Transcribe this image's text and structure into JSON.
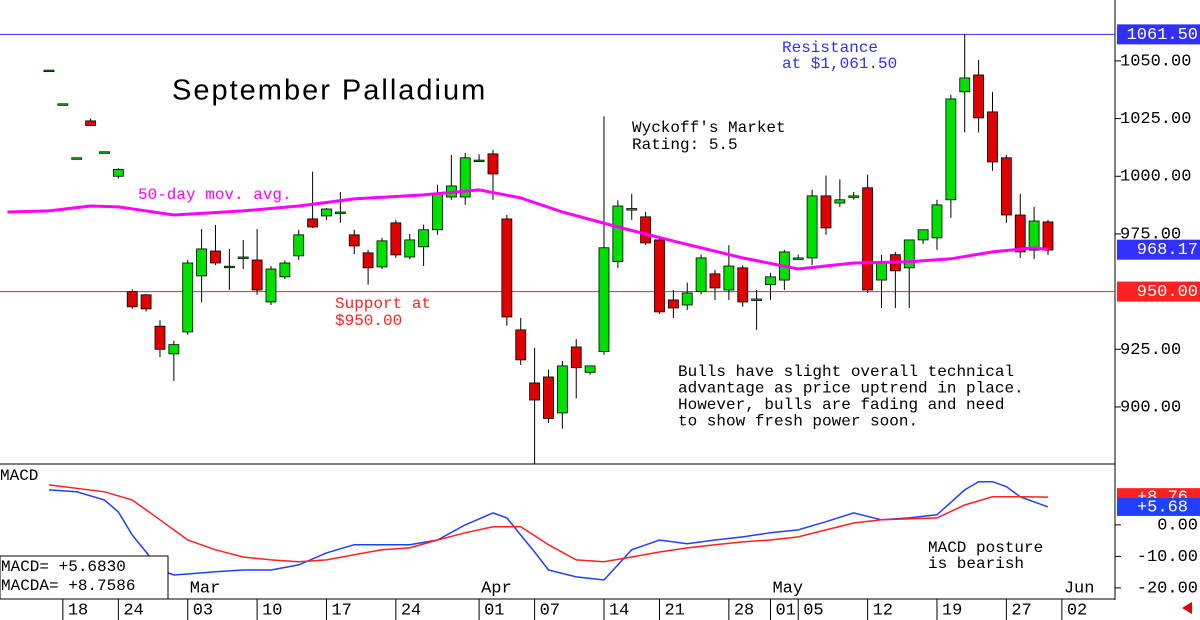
{
  "chart_data": [
    {
      "type": "candlestick",
      "title": "September Palladium",
      "rating": [
        "Wyckoff's Market",
        "Rating: 5.5"
      ],
      "commentary": [
        "Bulls have slight overall technical",
        "advantage as price uptrend in place.",
        "However, bulls are fading and need",
        "to show fresh power soon."
      ],
      "open": [
        1046,
        1031.4,
        1008,
        1024,
        1010.6,
        1000,
        950,
        948.6,
        935,
        923,
        932.5,
        956.8,
        967.6,
        961,
        965,
        963.7,
        945.5,
        956.4,
        965.5,
        981.5,
        982.8,
        984.5,
        974.6,
        966.8,
        960.7,
        979.8,
        965,
        969.4,
        976.8,
        991,
        991,
        1007,
        1009.7,
        981.5,
        933.4,
        910.4,
        913,
        897.4,
        926,
        915,
        924,
        963,
        986,
        982.4,
        972.4,
        946.4,
        944.2,
        950,
        957.7,
        950.7,
        960.3,
        946.8,
        953,
        955,
        964.6,
        964.6,
        991.5,
        988.4,
        991.5,
        995,
        955,
        966,
        960.3,
        972.4,
        973.3,
        989.8,
        1036.6,
        1043.9,
        1027.9,
        1008,
        983.2,
        968,
        980.2
      ],
      "high": [
        1046,
        1031.4,
        1008,
        1025,
        1010.6,
        1003.5,
        951,
        949,
        937.6,
        928.7,
        963.7,
        977.1,
        978.9,
        968.5,
        972.4,
        977.1,
        961.1,
        963.5,
        976.8,
        1002,
        986.2,
        993.2,
        976.8,
        968.1,
        973.3,
        981.1,
        975,
        979,
        996.3,
        1009.2,
        1010.1,
        1009.5,
        1011.4,
        983.2,
        938.6,
        925.6,
        916.1,
        919.9,
        929.4,
        917,
        1026,
        989.6,
        992.4,
        984.6,
        973.7,
        950.7,
        953.9,
        966,
        959.4,
        970.1,
        961.4,
        950.7,
        958.1,
        968.1,
        966,
        994.1,
        1000.3,
        998.7,
        993.2,
        1000.7,
        965.9,
        967.2,
        972.5,
        976.8,
        989.8,
        1035.3,
        1061.5,
        1050.4,
        1036.6,
        1009.2,
        992.4,
        986.7,
        981.1
      ],
      "low": [
        1046,
        1031.4,
        1008,
        1022,
        1010.6,
        999,
        942.5,
        941.4,
        921.6,
        911.3,
        931.3,
        945.5,
        961.5,
        950.7,
        959.8,
        948.6,
        944.2,
        955.4,
        963.7,
        977.6,
        981.1,
        979.8,
        966.3,
        953.0,
        959.8,
        964.6,
        964,
        961.1,
        974.6,
        989.8,
        987.6,
        1006.5,
        989.8,
        935.2,
        918.2,
        875.5,
        893.1,
        890.6,
        903.7,
        914,
        922.7,
        960.3,
        981.1,
        970.2,
        940.3,
        938.6,
        942.0,
        948.8,
        946.4,
        946.4,
        943.4,
        933.4,
        946.4,
        950.7,
        963.7,
        961.5,
        974.6,
        986.7,
        989.8,
        949.4,
        942.9,
        942.9,
        942.9,
        970.7,
        968.1,
        982.0,
        1019,
        1019,
        1002.4,
        979.8,
        964.6,
        964.1,
        965.9
      ],
      "close": [
        1046,
        1031.4,
        1008,
        1022,
        1010.6,
        1003,
        943.4,
        942.5,
        925,
        927,
        962.4,
        968.5,
        962.4,
        961,
        965,
        950.7,
        959.8,
        962.4,
        974.6,
        978,
        985.8,
        984.5,
        969.8,
        960.3,
        972,
        965.9,
        972.4,
        976.8,
        992.4,
        995.8,
        1008,
        1007,
        1001,
        939,
        920.4,
        903,
        895,
        917.8,
        917,
        917.8,
        969,
        987.1,
        986,
        971.1,
        941.2,
        942.9,
        949.4,
        964.6,
        951.6,
        961.1,
        945.5,
        946.8,
        956.4,
        967.2,
        964.6,
        991.5,
        977.6,
        989.8,
        991.5,
        950.7,
        963,
        959,
        972.4,
        976.8,
        987.6,
        1033.5,
        1042.6,
        1025.3,
        1006.2,
        983.2,
        967.2,
        980.6,
        968
      ],
      "up_color": "#00e000",
      "down_color": "#e00000",
      "ylim": [
        875.7,
        1076.4
      ],
      "yticks": [
        {
          "value": 900,
          "label": "900.00"
        },
        {
          "value": 925,
          "label": "925.00"
        },
        {
          "value": 975,
          "label": "975.00"
        },
        {
          "value": 1000,
          "label": "1000.00"
        },
        {
          "value": 1025,
          "label": "1025.00"
        },
        {
          "value": 1050,
          "label": "1050.00"
        }
      ],
      "xlim": [
        -3.53,
        76.83
      ],
      "xticks": [
        {
          "value": 1,
          "label": "18"
        },
        {
          "value": 5,
          "label": "24"
        },
        {
          "value": 10,
          "label": "03"
        },
        {
          "value": 15,
          "label": "10"
        },
        {
          "value": 20,
          "label": "17"
        },
        {
          "value": 25,
          "label": "24"
        },
        {
          "value": 31,
          "label": "01"
        },
        {
          "value": 35,
          "label": "07"
        },
        {
          "value": 40,
          "label": "14"
        },
        {
          "value": 44,
          "label": "21"
        },
        {
          "value": 49,
          "label": "28"
        },
        {
          "value": 52,
          "label": "01"
        },
        {
          "value": 54,
          "label": "05"
        },
        {
          "value": 59,
          "label": "12"
        },
        {
          "value": 64,
          "label": "19"
        },
        {
          "value": 69,
          "label": "27"
        },
        {
          "value": 73,
          "label": "02"
        }
      ],
      "months": [
        {
          "value": 10,
          "label": "Mar"
        },
        {
          "value": 31,
          "label": "Apr"
        },
        {
          "value": 52,
          "label": "May"
        },
        {
          "value": 73,
          "label": "Jun"
        }
      ],
      "moving_average": {
        "name": "50-day mov. avg.",
        "color": "#ff00ff",
        "x": [
          -3,
          0,
          3,
          5,
          9,
          14,
          18,
          22,
          27,
          31,
          34,
          37,
          41,
          45,
          50,
          54,
          58,
          62,
          65,
          68,
          71,
          72
        ],
        "values": [
          984.5,
          985.0,
          987.1,
          986.7,
          983.2,
          985.0,
          987.1,
          990.2,
          991.9,
          994.1,
          990.6,
          984.5,
          978.0,
          971.9,
          964.6,
          959.8,
          962.4,
          962.9,
          964.2,
          967.2,
          969.0,
          968.17
        ],
        "value_label": "968.17"
      },
      "resistance": {
        "value": 1061.5,
        "value_label": "1061.50",
        "text": [
          "Resistance",
          "at $1,061.50"
        ],
        "color": "#3030ff"
      },
      "support": {
        "value": 950,
        "value_label": "950.00",
        "text": [
          "Support at",
          "$950.00"
        ],
        "color": "#ff2020"
      }
    },
    {
      "type": "line",
      "title": "MACD",
      "note": [
        "MACD posture",
        "is bearish"
      ],
      "readouts": [
        "MACD=   +5.6830",
        "MACDA=  +8.7586"
      ],
      "ylim": [
        -23.2,
        19
      ],
      "yticks": [
        {
          "value": 0,
          "label": "0.00"
        },
        {
          "value": -10,
          "label": "-10.00"
        },
        {
          "value": -20,
          "label": "-20.00"
        }
      ],
      "series": [
        {
          "color": "#2040ff",
          "value_label": "+5.68",
          "x": [
            0,
            2,
            4,
            5,
            6,
            7,
            8,
            9,
            10,
            12,
            14,
            16,
            18,
            20,
            22,
            24,
            26,
            28,
            30,
            32,
            33,
            34,
            35,
            36,
            38,
            40,
            41,
            42,
            44,
            46,
            48,
            50,
            52,
            54,
            56,
            58,
            60,
            62,
            64,
            66,
            67,
            68,
            69,
            70,
            72
          ],
          "values": [
            11.1,
            10.5,
            7.9,
            4.1,
            -3.2,
            -8.6,
            -14.3,
            -15.9,
            -15.6,
            -14.9,
            -14.3,
            -14.3,
            -12.7,
            -8.9,
            -6.3,
            -6.3,
            -6.3,
            -4.8,
            0,
            3.8,
            2.2,
            -3.2,
            -8.6,
            -14.3,
            -16.5,
            -17.5,
            -12.7,
            -7.9,
            -4.8,
            -6.0,
            -4.8,
            -3.8,
            -2.5,
            -1.6,
            1.0,
            3.8,
            1.6,
            2.2,
            3.2,
            11.1,
            13.7,
            13.7,
            12.1,
            8.9,
            5.7
          ]
        },
        {
          "color": "#ff2020",
          "value_label": "+8.76",
          "x": [
            0,
            4,
            6,
            8,
            10,
            12,
            14,
            16,
            18,
            20,
            22,
            24,
            26,
            28,
            30,
            32,
            34,
            36,
            38,
            40,
            42,
            44,
            46,
            48,
            50,
            52,
            54,
            56,
            58,
            60,
            62,
            64,
            66,
            68,
            70,
            72
          ],
          "values": [
            12.7,
            10.5,
            7.9,
            1.6,
            -4.8,
            -7.9,
            -10.2,
            -11.1,
            -11.7,
            -11.1,
            -9.5,
            -7.9,
            -7.3,
            -4.8,
            -2.5,
            -0.6,
            -0.6,
            -6.3,
            -11.1,
            -11.7,
            -10.2,
            -8.6,
            -7.3,
            -6.3,
            -5.4,
            -4.8,
            -3.8,
            -1.6,
            0.6,
            1.6,
            1.9,
            2.2,
            6.3,
            8.9,
            8.9,
            8.8
          ]
        }
      ]
    }
  ]
}
